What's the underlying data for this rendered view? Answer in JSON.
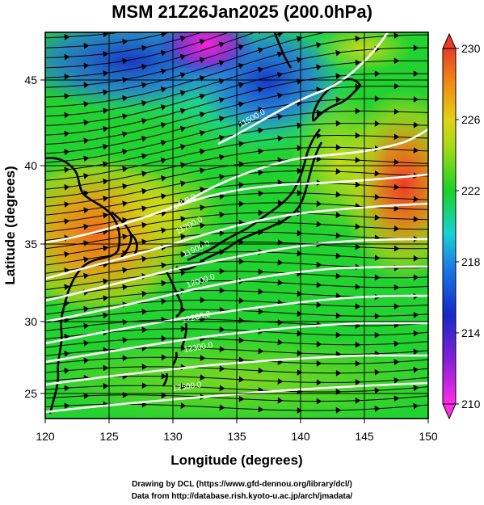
{
  "title": "MSM 21Z26Jan2025 (200.0hPa)",
  "x_axis": {
    "label": "Longitude (degrees)",
    "range": [
      120,
      150
    ],
    "ticks": [
      "120",
      "125",
      "130",
      "135",
      "140",
      "145",
      "150"
    ]
  },
  "y_axis": {
    "label": "Latitude  (degrees)",
    "range": [
      22.5,
      48
    ],
    "ticks": [
      "25",
      "30",
      "35",
      "40",
      "45"
    ]
  },
  "colorbar": {
    "range": [
      210,
      230
    ],
    "ticks": [
      "230",
      "226",
      "222",
      "218",
      "214",
      "210"
    ]
  },
  "contour_labels": [
    "11500.0",
    "11400.0",
    "11700.0",
    "11900.0",
    "12000.0",
    "12200.0",
    "12300.0",
    "12500.0"
  ],
  "footer": {
    "credit": "Drawing by DCL (https://www.gfd-dennou.org/library/dcl/)",
    "source": "Data from http://database.rish.kyoto-u.ac.jp/arch/jmadata/"
  },
  "colors": {
    "cold": "#1428c8",
    "coldest": "#e61edc",
    "cyan": "#18d2d2",
    "green": "#19d228",
    "yellow": "#d2d214",
    "orange": "#f08c14",
    "warm": "#f03c28"
  }
}
